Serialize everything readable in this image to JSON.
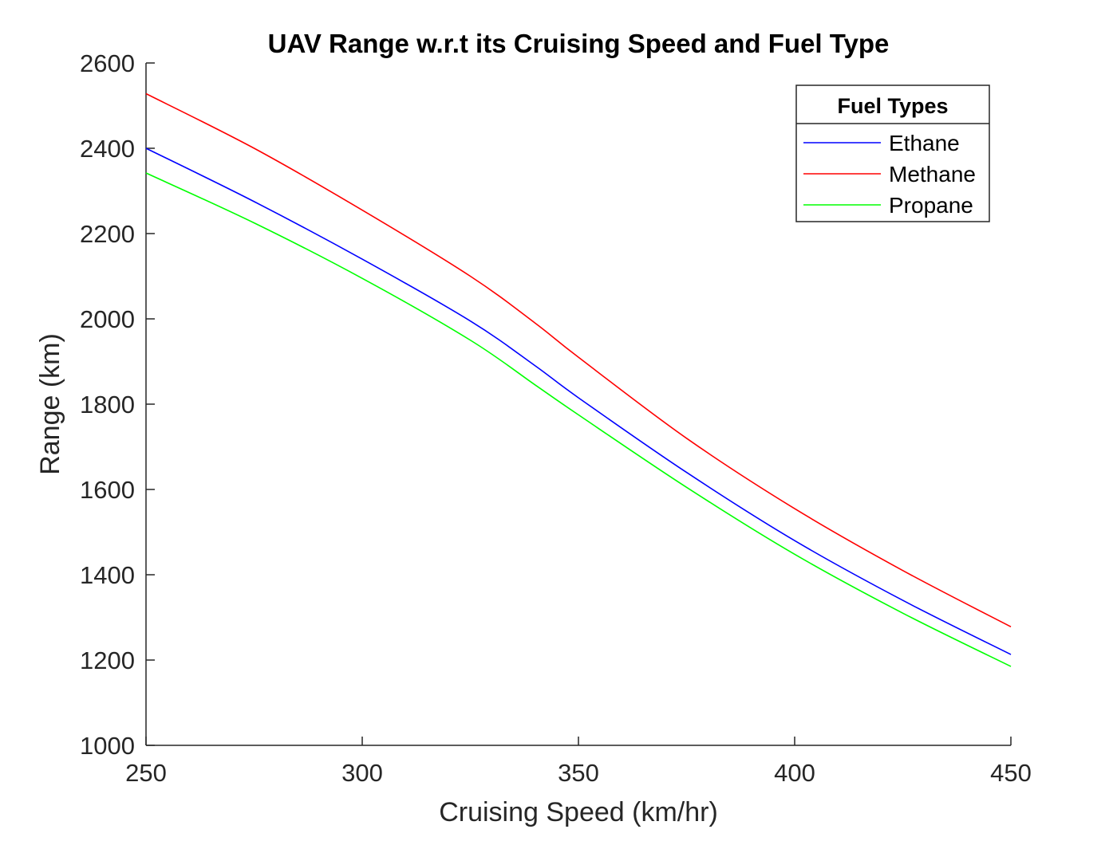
{
  "chart_data": {
    "type": "line",
    "title": "UAV Range w.r.t its Cruising Speed and Fuel Type",
    "xlabel": "Cruising Speed (km/hr)",
    "ylabel": "Range (km)",
    "xlim": [
      250,
      450
    ],
    "ylim": [
      1000,
      2600
    ],
    "x_ticks": [
      "250",
      "300",
      "350",
      "400",
      "450"
    ],
    "y_ticks": [
      "1000",
      "1200",
      "1400",
      "1600",
      "1800",
      "2000",
      "2200",
      "2400",
      "2600"
    ],
    "grid": false,
    "legend": {
      "title": "Fuel Types",
      "placement": "top-right"
    },
    "x": [
      250,
      275,
      300,
      325,
      340,
      350,
      375,
      400,
      425,
      450
    ],
    "series": [
      {
        "name": "Ethane",
        "color": "#0000ff",
        "values": [
          2400,
          2275,
          2140,
          1995,
          1890,
          1815,
          1640,
          1480,
          1340,
          1213
        ]
      },
      {
        "name": "Methane",
        "color": "#ff0000",
        "values": [
          2528,
          2400,
          2255,
          2100,
          1990,
          1910,
          1720,
          1555,
          1410,
          1278
        ]
      },
      {
        "name": "Propane",
        "color": "#00ff00",
        "values": [
          2342,
          2225,
          2095,
          1950,
          1845,
          1775,
          1605,
          1448,
          1310,
          1185
        ]
      }
    ]
  }
}
